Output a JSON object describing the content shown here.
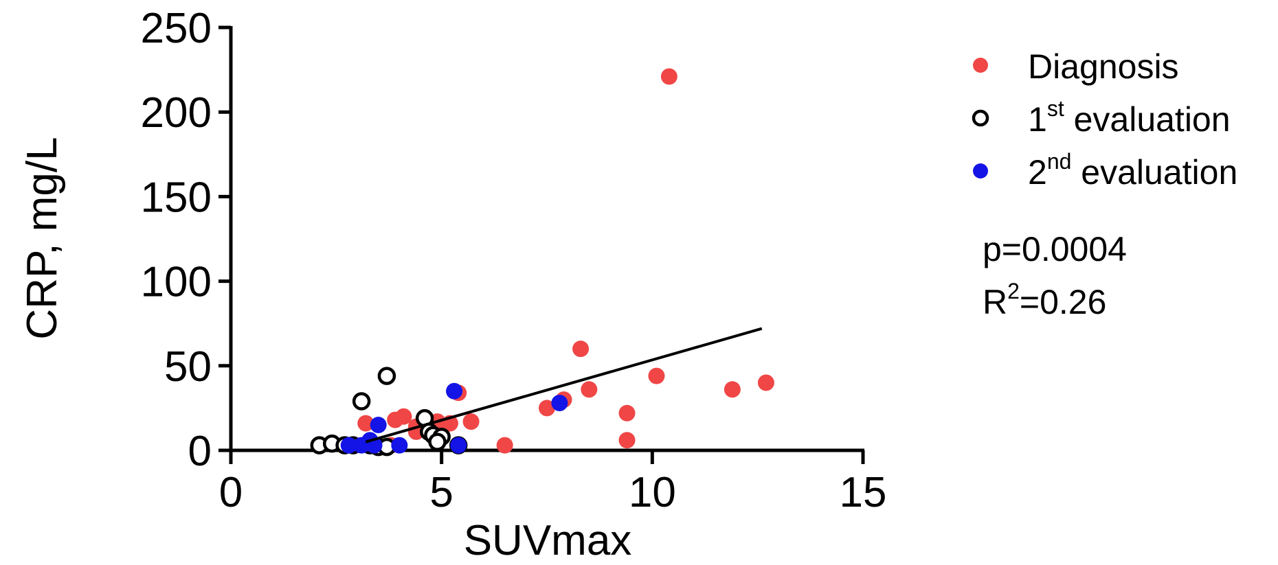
{
  "chart_data": {
    "type": "scatter",
    "xlabel": "SUVmax",
    "ylabel": "CRP, mg/L",
    "xlim": [
      0,
      15
    ],
    "ylim": [
      0,
      250
    ],
    "xticks": [
      0,
      5,
      10,
      15
    ],
    "yticks": [
      0,
      50,
      100,
      150,
      200,
      250
    ],
    "grid": false,
    "legend_position": "right",
    "series": [
      {
        "name": "Diagnosis",
        "legend_base": "Diagnosis",
        "legend_sup": "",
        "legend_rest": "",
        "marker": "filled",
        "color": "#f04646",
        "points": [
          [
            10.4,
            221
          ],
          [
            8.3,
            60
          ],
          [
            10.1,
            44
          ],
          [
            12.7,
            40
          ],
          [
            11.9,
            36
          ],
          [
            8.5,
            36
          ],
          [
            7.9,
            30
          ],
          [
            7.5,
            25
          ],
          [
            9.4,
            22
          ],
          [
            9.4,
            6
          ],
          [
            6.5,
            3
          ],
          [
            5.4,
            34
          ],
          [
            5.7,
            17
          ],
          [
            5.2,
            16
          ],
          [
            4.9,
            17
          ],
          [
            4.1,
            20
          ],
          [
            3.9,
            18
          ],
          [
            4.4,
            14
          ],
          [
            4.4,
            11
          ],
          [
            3.2,
            16
          ],
          [
            3.8,
            3
          ]
        ]
      },
      {
        "name": "1st evaluation",
        "legend_base": "1",
        "legend_sup": "st",
        "legend_rest": " evaluation",
        "marker": "open",
        "color": "#000000",
        "points": [
          [
            3.7,
            44
          ],
          [
            3.1,
            29
          ],
          [
            4.6,
            19
          ],
          [
            4.7,
            11
          ],
          [
            4.8,
            9
          ],
          [
            5.0,
            8
          ],
          [
            4.9,
            5
          ],
          [
            2.1,
            3
          ],
          [
            2.4,
            4
          ],
          [
            2.7,
            3
          ],
          [
            2.9,
            3
          ],
          [
            3.3,
            3
          ],
          [
            3.5,
            2
          ],
          [
            3.7,
            2
          ],
          [
            5.4,
            3
          ]
        ]
      },
      {
        "name": "2nd evaluation",
        "legend_base": "2",
        "legend_sup": "nd",
        "legend_rest": " evaluation",
        "marker": "filled",
        "color": "#1414e6",
        "points": [
          [
            5.3,
            35
          ],
          [
            7.8,
            28
          ],
          [
            3.5,
            15
          ],
          [
            3.3,
            6
          ],
          [
            3.1,
            3
          ],
          [
            4.0,
            3
          ],
          [
            5.4,
            3
          ],
          [
            3.4,
            3
          ],
          [
            2.8,
            3
          ]
        ]
      }
    ],
    "regression_line": {
      "x": [
        3.2,
        12.6
      ],
      "y": [
        5,
        72
      ]
    },
    "annotations": [
      {
        "text": "p=0.0004",
        "base": "p=0.0004",
        "sup": "",
        "rest": ""
      },
      {
        "text": "R2=0.26",
        "base": "R",
        "sup": "2",
        "rest": "=0.26"
      }
    ]
  }
}
